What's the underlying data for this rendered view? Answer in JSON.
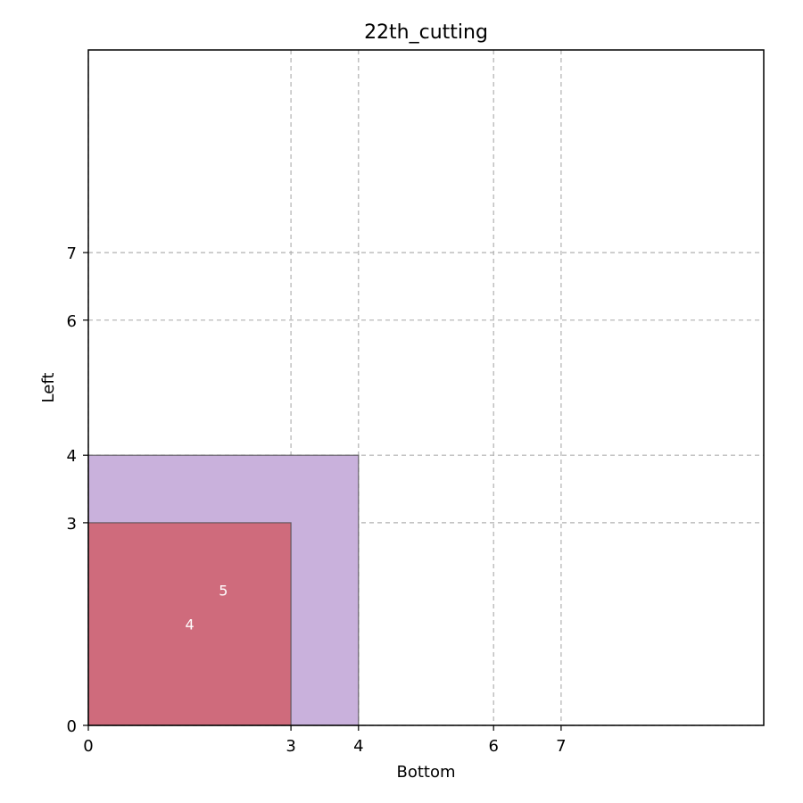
{
  "chart_data": {
    "type": "rectangle-packing",
    "title": "22th_cutting",
    "xlabel": "Bottom",
    "ylabel": "Left",
    "xlim": [
      0,
      10
    ],
    "ylim": [
      0,
      10
    ],
    "x_ticks": [
      0,
      3,
      4,
      6,
      7
    ],
    "y_ticks": [
      0,
      3,
      4,
      6,
      7
    ],
    "grid": true,
    "rectangles": [
      {
        "id": "5",
        "x": 0,
        "y": 0,
        "width": 4,
        "height": 4,
        "color": "#c9b1dc"
      },
      {
        "id": "4",
        "x": 0,
        "y": 0,
        "width": 3,
        "height": 3,
        "color": "#cf6b7c"
      }
    ],
    "labels": [
      {
        "text": "5",
        "x": 2,
        "y": 2
      },
      {
        "text": "4",
        "x": 1.5,
        "y": 1.5
      }
    ]
  }
}
